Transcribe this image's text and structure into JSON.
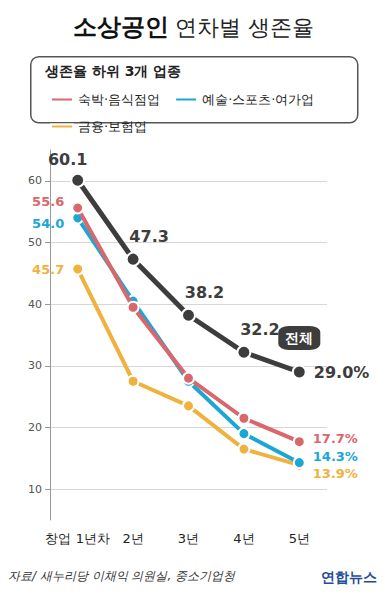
{
  "chart_data": {
    "type": "line",
    "title": "소상공인 연차별 생존율",
    "legend_title": "생존율 하위 3개 업종",
    "source": "자료/ 새누리당 이채익 의원실, 중소기업청",
    "credit": "연합뉴스",
    "categories": [
      "창업 1년차",
      "2년",
      "3년",
      "4년",
      "5년"
    ],
    "series": [
      {
        "name": "전체",
        "color": "#3d3d3d",
        "values": [
          60.1,
          47.3,
          38.2,
          32.2,
          29.0
        ],
        "value_labels": [
          "60.1",
          "47.3",
          "38.2",
          "32.2",
          "29.0%"
        ]
      },
      {
        "name": "숙박·음식점업",
        "color": "#d9676c",
        "values": [
          55.6,
          39.5,
          28.0,
          21.5,
          17.7
        ],
        "value_labels": [
          "55.6",
          null,
          null,
          null,
          "17.7%"
        ]
      },
      {
        "name": "예술·스포츠·여가업",
        "color": "#1aa7d6",
        "values": [
          54.0,
          40.5,
          27.5,
          19.0,
          14.3
        ],
        "value_labels": [
          "54.0",
          null,
          null,
          null,
          "14.3%"
        ]
      },
      {
        "name": "금융·보험업",
        "color": "#f0b23e",
        "values": [
          45.7,
          27.5,
          23.5,
          16.5,
          13.9
        ],
        "value_labels": [
          "45.7",
          null,
          null,
          null,
          "13.9%"
        ]
      }
    ],
    "ylim": [
      5,
      65
    ],
    "yticks": [
      10,
      20,
      30,
      40,
      50,
      60
    ],
    "grid": true,
    "legend": "top",
    "data_labels": true,
    "marker": "circle"
  }
}
